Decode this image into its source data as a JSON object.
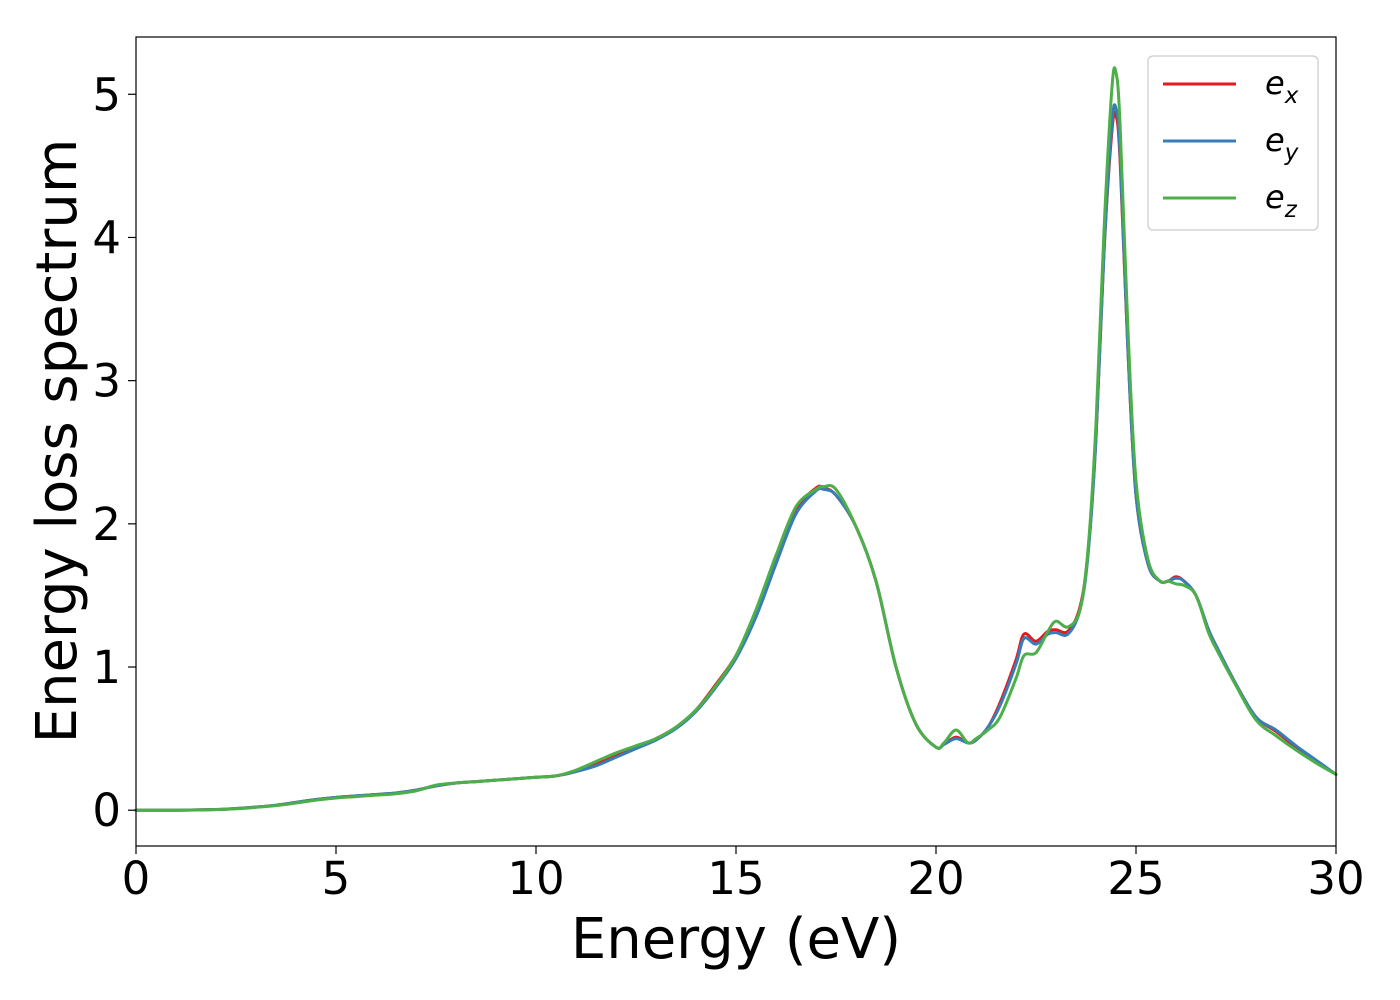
{
  "chart_data": {
    "type": "line",
    "title": "",
    "xlabel": "Energy (eV)",
    "ylabel": "Energy loss spectrum",
    "xlim": [
      0,
      30
    ],
    "ylim": [
      -0.25,
      5.4
    ],
    "xticks": [
      0,
      5,
      10,
      15,
      20,
      25,
      30
    ],
    "yticks": [
      0,
      1,
      2,
      3,
      4,
      5
    ],
    "grid": false,
    "legend": {
      "position": "top-right"
    },
    "series": [
      {
        "name": "e",
        "subscript": "x",
        "color": "#e41a1c",
        "x": [
          0,
          1,
          2,
          2.5,
          3,
          3.5,
          4,
          4.5,
          5,
          5.5,
          6,
          6.5,
          7,
          7.5,
          8,
          8.5,
          9,
          9.5,
          10,
          10.5,
          11,
          11.5,
          12,
          12.5,
          13,
          13.5,
          14,
          14.5,
          15,
          15.5,
          16,
          16.5,
          17,
          17.2,
          17.5,
          18,
          18.5,
          19,
          19.5,
          20,
          20.2,
          20.5,
          20.8,
          21,
          21.3,
          21.6,
          22,
          22.2,
          22.5,
          22.8,
          23,
          23.3,
          23.6,
          23.8,
          24,
          24.2,
          24.4,
          24.5,
          24.6,
          24.8,
          25,
          25.3,
          25.6,
          25.8,
          26,
          26.2,
          26.5,
          26.8,
          27,
          27.5,
          28,
          28.5,
          29,
          29.5,
          30
        ],
        "y": [
          0,
          0,
          0.005,
          0.012,
          0.022,
          0.035,
          0.055,
          0.075,
          0.09,
          0.1,
          0.11,
          0.12,
          0.14,
          0.17,
          0.19,
          0.2,
          0.21,
          0.22,
          0.23,
          0.24,
          0.27,
          0.32,
          0.38,
          0.44,
          0.5,
          0.58,
          0.7,
          0.88,
          1.08,
          1.38,
          1.75,
          2.1,
          2.25,
          2.25,
          2.2,
          1.98,
          1.6,
          1.0,
          0.6,
          0.44,
          0.46,
          0.51,
          0.47,
          0.49,
          0.58,
          0.75,
          1.05,
          1.23,
          1.18,
          1.25,
          1.26,
          1.25,
          1.42,
          1.8,
          2.6,
          3.9,
          4.75,
          4.85,
          4.55,
          3.2,
          2.2,
          1.72,
          1.6,
          1.6,
          1.63,
          1.6,
          1.5,
          1.27,
          1.15,
          0.88,
          0.65,
          0.55,
          0.44,
          0.34,
          0.25
        ]
      },
      {
        "name": "e",
        "subscript": "y",
        "color": "#377eb8",
        "x": [
          0,
          1,
          2,
          2.5,
          3,
          3.5,
          4,
          4.5,
          5,
          5.5,
          6,
          6.5,
          7,
          7.5,
          8,
          8.5,
          9,
          9.5,
          10,
          10.5,
          11,
          11.5,
          12,
          12.5,
          13,
          13.5,
          14,
          14.5,
          15,
          15.5,
          16,
          16.5,
          17,
          17.2,
          17.5,
          18,
          18.5,
          19,
          19.5,
          20,
          20.2,
          20.5,
          20.8,
          21,
          21.3,
          21.6,
          22,
          22.2,
          22.5,
          22.8,
          23,
          23.3,
          23.6,
          23.8,
          24,
          24.2,
          24.4,
          24.5,
          24.6,
          24.8,
          25,
          25.3,
          25.6,
          25.8,
          26,
          26.2,
          26.5,
          26.8,
          27,
          27.5,
          28,
          28.5,
          29,
          29.5,
          30
        ],
        "y": [
          0,
          0,
          0.005,
          0.012,
          0.022,
          0.035,
          0.055,
          0.075,
          0.09,
          0.1,
          0.11,
          0.12,
          0.14,
          0.17,
          0.19,
          0.2,
          0.21,
          0.22,
          0.23,
          0.24,
          0.27,
          0.31,
          0.37,
          0.43,
          0.49,
          0.57,
          0.69,
          0.86,
          1.06,
          1.35,
          1.72,
          2.07,
          2.23,
          2.24,
          2.2,
          1.98,
          1.6,
          1.0,
          0.6,
          0.44,
          0.46,
          0.5,
          0.47,
          0.49,
          0.58,
          0.73,
          1.02,
          1.2,
          1.16,
          1.23,
          1.24,
          1.23,
          1.4,
          1.78,
          2.6,
          3.9,
          4.8,
          4.9,
          4.6,
          3.2,
          2.2,
          1.72,
          1.6,
          1.6,
          1.62,
          1.6,
          1.5,
          1.27,
          1.15,
          0.88,
          0.65,
          0.56,
          0.45,
          0.35,
          0.25
        ]
      },
      {
        "name": "e",
        "subscript": "z",
        "color": "#4daf4a",
        "x": [
          0,
          1,
          2,
          2.5,
          3,
          3.5,
          4,
          4.5,
          5,
          5.5,
          6,
          6.5,
          7,
          7.5,
          8,
          8.5,
          9,
          9.5,
          10,
          10.5,
          11,
          11.5,
          12,
          12.5,
          13,
          13.5,
          14,
          14.5,
          15,
          15.5,
          16,
          16.5,
          17,
          17.2,
          17.5,
          18,
          18.5,
          19,
          19.5,
          20,
          20.2,
          20.5,
          20.8,
          21,
          21.3,
          21.6,
          22,
          22.2,
          22.5,
          22.8,
          23,
          23.3,
          23.6,
          23.8,
          24,
          24.2,
          24.4,
          24.5,
          24.6,
          24.8,
          25,
          25.3,
          25.6,
          25.8,
          26,
          26.2,
          26.5,
          26.8,
          27,
          27.5,
          28,
          28.5,
          29,
          29.5,
          30
        ],
        "y": [
          0,
          0,
          0.004,
          0.01,
          0.02,
          0.032,
          0.05,
          0.07,
          0.085,
          0.095,
          0.105,
          0.115,
          0.135,
          0.175,
          0.19,
          0.2,
          0.21,
          0.22,
          0.23,
          0.24,
          0.28,
          0.34,
          0.4,
          0.45,
          0.5,
          0.58,
          0.7,
          0.87,
          1.08,
          1.4,
          1.78,
          2.12,
          2.24,
          2.26,
          2.24,
          1.98,
          1.6,
          1.0,
          0.6,
          0.44,
          0.47,
          0.56,
          0.47,
          0.5,
          0.56,
          0.65,
          0.92,
          1.08,
          1.1,
          1.25,
          1.32,
          1.28,
          1.4,
          1.82,
          2.7,
          4.05,
          5.05,
          5.15,
          4.8,
          3.35,
          2.3,
          1.75,
          1.6,
          1.6,
          1.58,
          1.57,
          1.5,
          1.25,
          1.13,
          0.87,
          0.63,
          0.52,
          0.42,
          0.33,
          0.25
        ]
      }
    ]
  }
}
